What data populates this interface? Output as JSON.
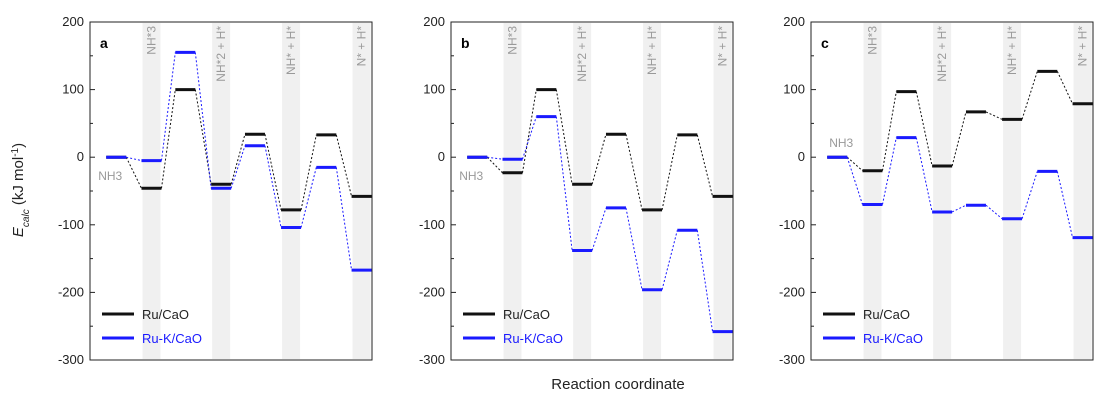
{
  "chart_data": {
    "type": "line",
    "ylabel_main": "E",
    "ylabel_sub": "calc",
    "ylabel_rest": " (kJ mol",
    "ylabel_sup": "-1",
    "ylabel_close": ")",
    "xlabel": "Reaction coordinate",
    "ylim": [
      -300,
      200
    ],
    "yticks": [
      "200",
      "100",
      "0",
      "-100",
      "-200",
      "-300"
    ],
    "colors": {
      "ru_cao": "#111111",
      "ru_k_cao": "#1a1aff",
      "shade": "#f0f0f0",
      "label": "#999999"
    },
    "legend": [
      "Ru/CaO",
      "Ru-K/CaO"
    ],
    "panels": [
      {
        "letter": "a",
        "series": [
          {
            "name": "Ru/CaO",
            "values": [
              0,
              -46,
              100,
              -40,
              34,
              -78,
              33,
              -58
            ]
          },
          {
            "name": "Ru-K/CaO",
            "values": [
              0,
              -5,
              155,
              -46,
              17,
              -104,
              -15,
              -167
            ]
          }
        ]
      },
      {
        "letter": "b",
        "series": [
          {
            "name": "Ru/CaO",
            "values": [
              0,
              -23,
              100,
              -40,
              34,
              -78,
              33,
              -58
            ]
          },
          {
            "name": "Ru-K/CaO",
            "values": [
              0,
              -3,
              60,
              -138,
              -75,
              -196,
              -108,
              -258
            ]
          }
        ]
      },
      {
        "letter": "c",
        "series": [
          {
            "name": "Ru/CaO",
            "values": [
              0,
              -20,
              97,
              -13,
              67,
              56,
              127,
              79
            ]
          },
          {
            "name": "Ru-K/CaO",
            "values": [
              0,
              -70,
              29,
              -81,
              -71,
              -91,
              -21,
              -119
            ]
          }
        ]
      }
    ],
    "band_labels": [
      "NH*3",
      "NH*2 + H*",
      "NH* + H*",
      "N* + H*"
    ],
    "nh3_gas_label": "NH3"
  }
}
